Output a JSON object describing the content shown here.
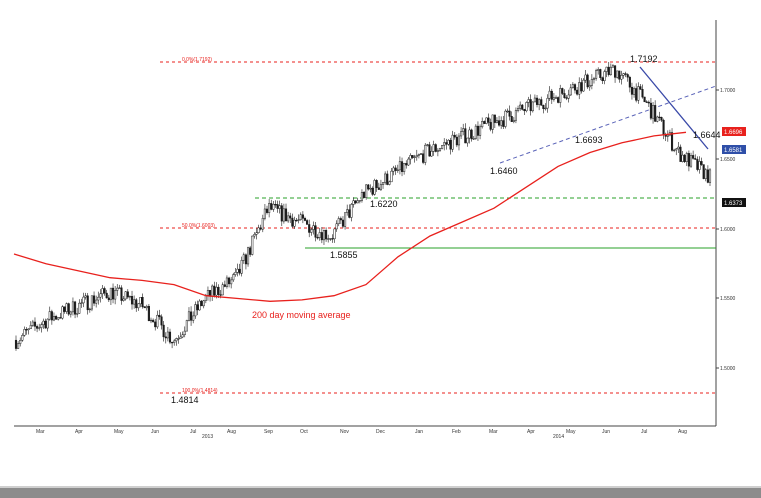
{
  "chart_data": {
    "type": "candlestick",
    "title": "",
    "xlabel": "",
    "ylabel": "",
    "grid": false,
    "legend": "none",
    "ylim": [
      1.475,
      1.735
    ],
    "y_ticks": [
      "1.5000",
      "1.5500",
      "1.6000",
      "1.6500",
      "1.7000"
    ],
    "x_tick_labels": [
      "Mar",
      "Apr",
      "May",
      "Jun",
      "Jul",
      "Aug",
      "Sep",
      "Oct",
      "Nov",
      "Dec",
      "Jan",
      "Feb",
      "Mar",
      "Apr",
      "May",
      "Jun",
      "Jul",
      "Aug"
    ],
    "year_labels": [
      "2013",
      "2014"
    ],
    "series": [
      {
        "values_monthly_close": [
          1.52,
          1.535,
          1.545,
          1.555,
          1.545,
          1.52,
          1.55,
          1.565,
          1.615,
          1.605,
          1.595,
          1.625,
          1.64,
          1.655,
          1.665,
          1.675,
          1.685,
          1.695,
          1.705,
          1.715,
          1.69,
          1.655,
          1.6373
        ]
      },
      {
        "name": "200 day moving average",
        "values": [
          1.582,
          1.575,
          1.57,
          1.565,
          1.563,
          1.56,
          1.552,
          1.55,
          1.548,
          1.549,
          1.552,
          1.56,
          1.58,
          1.595,
          1.605,
          1.615,
          1.63,
          1.645,
          1.655,
          1.662,
          1.667,
          1.6696
        ]
      }
    ],
    "annotations": {
      "fib_0": "0.0%(1.7192)",
      "fib_50": "50.0%(1.6003)",
      "fib_100": "100.0%(1.4814)",
      "level_high": "1.7192",
      "level_1_6693": "1.6693",
      "level_1_6460": "1.6460",
      "level_1_6220": "1.6220",
      "level_1_5855": "1.5855",
      "level_low": "1.4814",
      "level_1_6644": "1.6644",
      "ma_label": "200 day moving average"
    },
    "right_tags": {
      "ma_value": "1.6696",
      "trend_value": "1.6581",
      "last_price": "1.6373"
    },
    "colors": {
      "candles": "#1a1a1a",
      "moving_average": "#e8211d",
      "fib_lines": "#e8211d",
      "support_lines": "#2aa02a",
      "trend_solid": "#3949a8",
      "trend_dashed": "#5a63b8",
      "tag_blue": "#2f4fa8",
      "tag_red": "#e8211d",
      "tag_black": "#111111"
    }
  }
}
